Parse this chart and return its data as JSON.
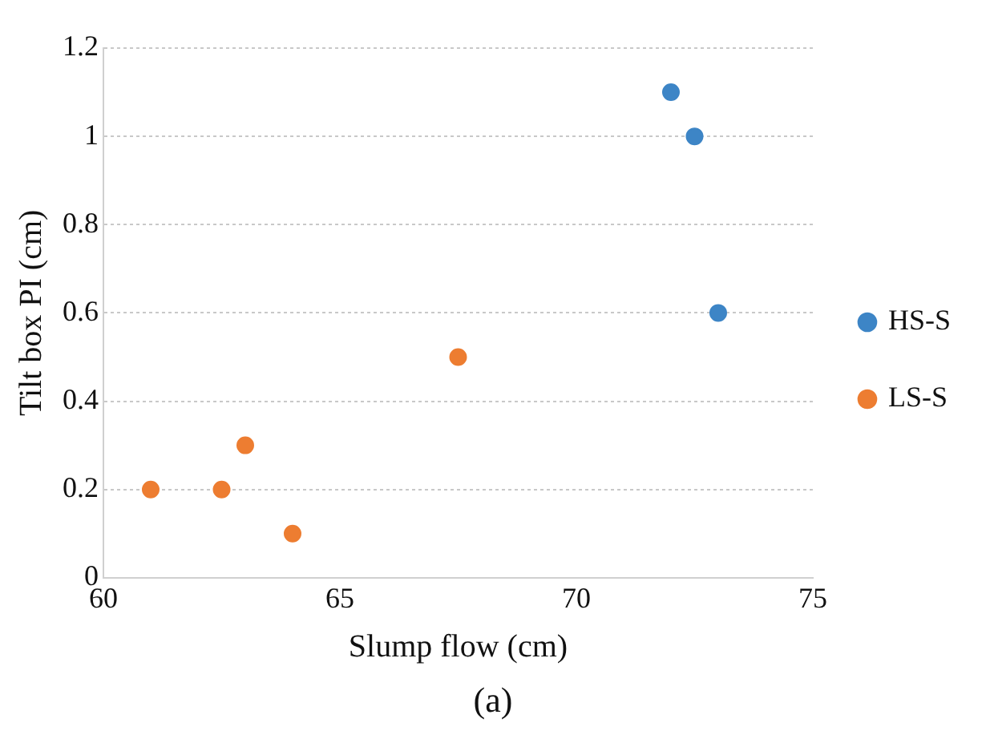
{
  "chart_data": {
    "type": "scatter",
    "xlabel": "Slump flow (cm)",
    "ylabel": "Tilt box PI (cm)",
    "annotations": [
      "(a)"
    ],
    "xlim": [
      60,
      75
    ],
    "xticks": [
      60,
      65,
      70,
      75
    ],
    "ylim": [
      0,
      1.2
    ],
    "yticks": [
      0,
      0.2,
      0.4,
      0.6,
      0.8,
      1,
      1.2
    ],
    "grid": "y",
    "legend": "right",
    "marker": "circle",
    "series": [
      {
        "name": "HS-S",
        "color": "#3d85c6",
        "x": [
          72,
          72.5,
          73
        ],
        "values": [
          1.1,
          1,
          0.6
        ]
      },
      {
        "name": "LS-S",
        "color": "#ed7d31",
        "x": [
          67.5,
          63,
          61,
          62.5,
          64
        ],
        "values": [
          0.5,
          0.3,
          0.2,
          0.2,
          0.1
        ]
      }
    ]
  }
}
